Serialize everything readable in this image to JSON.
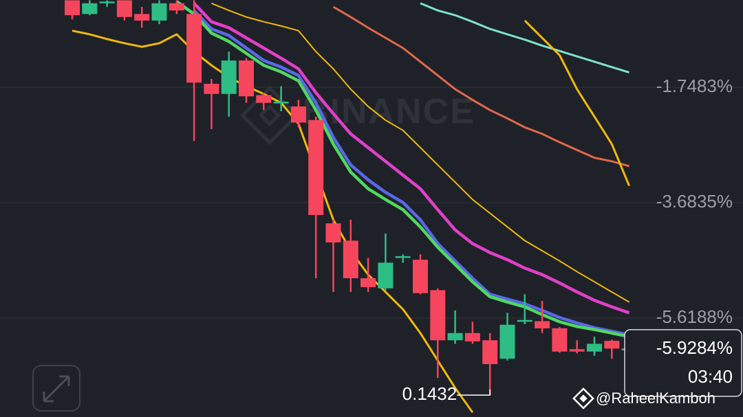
{
  "chart_data": {
    "type": "candlestick",
    "ylim": [
      -7.277,
      -0.285
    ],
    "yticks": [
      {
        "value": -1.7483,
        "label": "-1.7483%"
      },
      {
        "value": -3.6835,
        "label": "-3.6835%"
      },
      {
        "value": -5.6188,
        "label": "-5.6188%"
      }
    ],
    "grid": true,
    "up_color": "#2ebd85",
    "down_color": "#f6465d",
    "candles": [
      {
        "open": -0.29,
        "high": -0.29,
        "low": -0.61,
        "close": -0.54
      },
      {
        "open": -0.52,
        "high": -0.29,
        "low": -0.54,
        "close": -0.34
      },
      {
        "open": -0.34,
        "high": -0.29,
        "low": -0.4,
        "close": -0.31
      },
      {
        "open": -0.29,
        "high": -0.29,
        "low": -0.63,
        "close": -0.57
      },
      {
        "open": -0.52,
        "high": -0.4,
        "low": -0.75,
        "close": -0.63
      },
      {
        "open": -0.63,
        "high": -0.29,
        "low": -0.69,
        "close": -0.34
      },
      {
        "open": -0.34,
        "high": -0.29,
        "low": -0.52,
        "close": -0.46
      },
      {
        "open": -0.52,
        "high": -0.29,
        "low": -2.65,
        "close": -1.67
      },
      {
        "open": -1.69,
        "high": -1.61,
        "low": -2.45,
        "close": -1.86
      },
      {
        "open": -1.86,
        "high": -1.15,
        "low": -2.24,
        "close": -1.3
      },
      {
        "open": -1.3,
        "high": -1.26,
        "low": -2.01,
        "close": -1.9
      },
      {
        "open": -1.88,
        "high": -1.84,
        "low": -2.13,
        "close": -2.01
      },
      {
        "open": -2.01,
        "high": -1.73,
        "low": -2.15,
        "close": -1.99
      },
      {
        "open": -2.07,
        "high": -1.96,
        "low": -2.42,
        "close": -2.34
      },
      {
        "open": -2.3,
        "high": -2.24,
        "low": -4.95,
        "close": -3.89
      },
      {
        "open": -4.03,
        "high": -3.97,
        "low": -5.18,
        "close": -4.35
      },
      {
        "open": -4.32,
        "high": -3.97,
        "low": -5.18,
        "close": -4.95
      },
      {
        "open": -4.95,
        "high": -4.61,
        "low": -5.18,
        "close": -5.1
      },
      {
        "open": -5.12,
        "high": -4.2,
        "low": -5.15,
        "close": -4.69
      },
      {
        "open": -4.61,
        "high": -4.55,
        "low": -4.69,
        "close": -4.58
      },
      {
        "open": -4.64,
        "high": -4.55,
        "low": -5.22,
        "close": -5.2
      },
      {
        "open": -5.15,
        "high": -5.12,
        "low": -6.62,
        "close": -5.99
      },
      {
        "open": -5.99,
        "high": -5.49,
        "low": -6.05,
        "close": -5.87
      },
      {
        "open": -5.87,
        "high": -5.68,
        "low": -6.05,
        "close": -6.01
      },
      {
        "open": -5.99,
        "high": -5.87,
        "low": -6.91,
        "close": -6.39
      },
      {
        "open": -6.3,
        "high": -5.53,
        "low": -6.33,
        "close": -5.73
      },
      {
        "open": -5.68,
        "high": -5.22,
        "low": -5.72,
        "close": -5.65
      },
      {
        "open": -5.67,
        "high": -5.33,
        "low": -5.87,
        "close": -5.79
      },
      {
        "open": -5.79,
        "high": -5.77,
        "low": -6.2,
        "close": -6.18
      },
      {
        "open": -6.14,
        "high": -5.99,
        "low": -6.21,
        "close": -6.18
      },
      {
        "open": -6.18,
        "high": -5.93,
        "low": -6.25,
        "close": -6.05
      },
      {
        "open": -6.0,
        "high": -5.98,
        "low": -6.3,
        "close": -6.13
      },
      {
        "open": -6.13,
        "high": -6.13,
        "low": -6.13,
        "close": -6.13
      }
    ],
    "series": [
      {
        "color": "#f0b90b",
        "width": 3,
        "values": [
          -0.8,
          -0.86,
          -0.94,
          -1.01,
          -1.07,
          -1.01,
          -0.86,
          -1.15,
          -1.38,
          -1.58,
          -1.73,
          -1.86,
          -2.01,
          -2.36,
          -3.17,
          -3.97,
          -4.49,
          -4.89,
          -5.18,
          -5.47,
          -5.87,
          -6.33,
          -6.79,
          -7.2,
          null,
          null,
          null,
          null,
          null,
          null,
          null,
          null,
          null
        ]
      },
      {
        "color": "#f0b90b",
        "width": 2,
        "values": [
          null,
          null,
          null,
          null,
          null,
          null,
          null,
          null,
          -0.34,
          -0.46,
          -0.57,
          -0.65,
          -0.72,
          -0.8,
          -1.15,
          -1.44,
          -1.78,
          -2.07,
          -2.3,
          -2.47,
          -2.76,
          -3.05,
          -3.34,
          -3.63,
          -3.86,
          -4.09,
          -4.32,
          -4.49,
          -4.66,
          -4.84,
          -5.01,
          -5.18,
          -5.35
        ]
      },
      {
        "color": "#e0694a",
        "width": 3,
        "values": [
          null,
          null,
          null,
          null,
          null,
          null,
          null,
          null,
          null,
          null,
          null,
          null,
          null,
          null,
          null,
          -0.4,
          -0.57,
          -0.75,
          -0.92,
          -1.09,
          -1.32,
          -1.55,
          -1.78,
          -1.96,
          -2.13,
          -2.27,
          -2.42,
          -2.53,
          -2.67,
          -2.8,
          -2.93,
          -2.99,
          -3.07
        ]
      },
      {
        "color": "#7de3c8",
        "width": 3,
        "values": [
          null,
          null,
          null,
          null,
          null,
          null,
          null,
          null,
          null,
          null,
          null,
          null,
          null,
          null,
          null,
          null,
          null,
          null,
          null,
          null,
          -0.34,
          -0.46,
          -0.54,
          -0.65,
          -0.77,
          -0.86,
          -0.95,
          -1.05,
          -1.14,
          -1.23,
          -1.32,
          -1.41,
          -1.5
        ]
      },
      {
        "color": "#f0b90b",
        "width": 3,
        "values": [
          null,
          null,
          null,
          null,
          null,
          null,
          null,
          null,
          null,
          null,
          null,
          null,
          null,
          null,
          null,
          null,
          null,
          null,
          null,
          null,
          null,
          null,
          null,
          null,
          null,
          null,
          -0.63,
          -0.92,
          -1.21,
          -1.78,
          -2.24,
          -2.7,
          -3.4
        ]
      },
      {
        "color": "#e040c8",
        "width": 4.5,
        "values": [
          null,
          null,
          null,
          null,
          null,
          null,
          null,
          -0.34,
          -0.65,
          -0.75,
          -0.92,
          -1.09,
          -1.26,
          -1.44,
          -1.84,
          -2.19,
          -2.53,
          -2.76,
          -2.99,
          -3.22,
          -3.45,
          -3.8,
          -4.14,
          -4.37,
          -4.52,
          -4.64,
          -4.78,
          -4.89,
          -5.03,
          -5.18,
          -5.32,
          -5.43,
          -5.53
        ]
      },
      {
        "color": "#5868e8",
        "width": 4.5,
        "values": [
          null,
          null,
          null,
          null,
          null,
          null,
          null,
          -0.46,
          -0.77,
          -0.88,
          -1.09,
          -1.3,
          -1.41,
          -1.55,
          -2.01,
          -2.59,
          -3.05,
          -3.3,
          -3.51,
          -3.68,
          -3.97,
          -4.37,
          -4.66,
          -4.95,
          -5.22,
          -5.3,
          -5.38,
          -5.49,
          -5.61,
          -5.7,
          -5.78,
          -5.84,
          -5.9
        ]
      },
      {
        "color": "#4fd860",
        "width": 4.5,
        "values": [
          null,
          null,
          null,
          null,
          null,
          null,
          -0.31,
          -0.52,
          -0.84,
          -0.98,
          -1.18,
          -1.38,
          -1.49,
          -1.64,
          -2.13,
          -2.7,
          -3.17,
          -3.45,
          -3.63,
          -3.8,
          -4.09,
          -4.43,
          -4.72,
          -5.01,
          -5.26,
          -5.35,
          -5.43,
          -5.56,
          -5.68,
          -5.76,
          -5.81,
          -5.87,
          -5.93
        ]
      }
    ],
    "last_price": {
      "value": -5.9284,
      "label": "-5.9284%"
    },
    "countdown": "03:40",
    "low_annotation": "0.1432",
    "watermark": "BINANCE",
    "credit": "@RaheelKamboh"
  }
}
